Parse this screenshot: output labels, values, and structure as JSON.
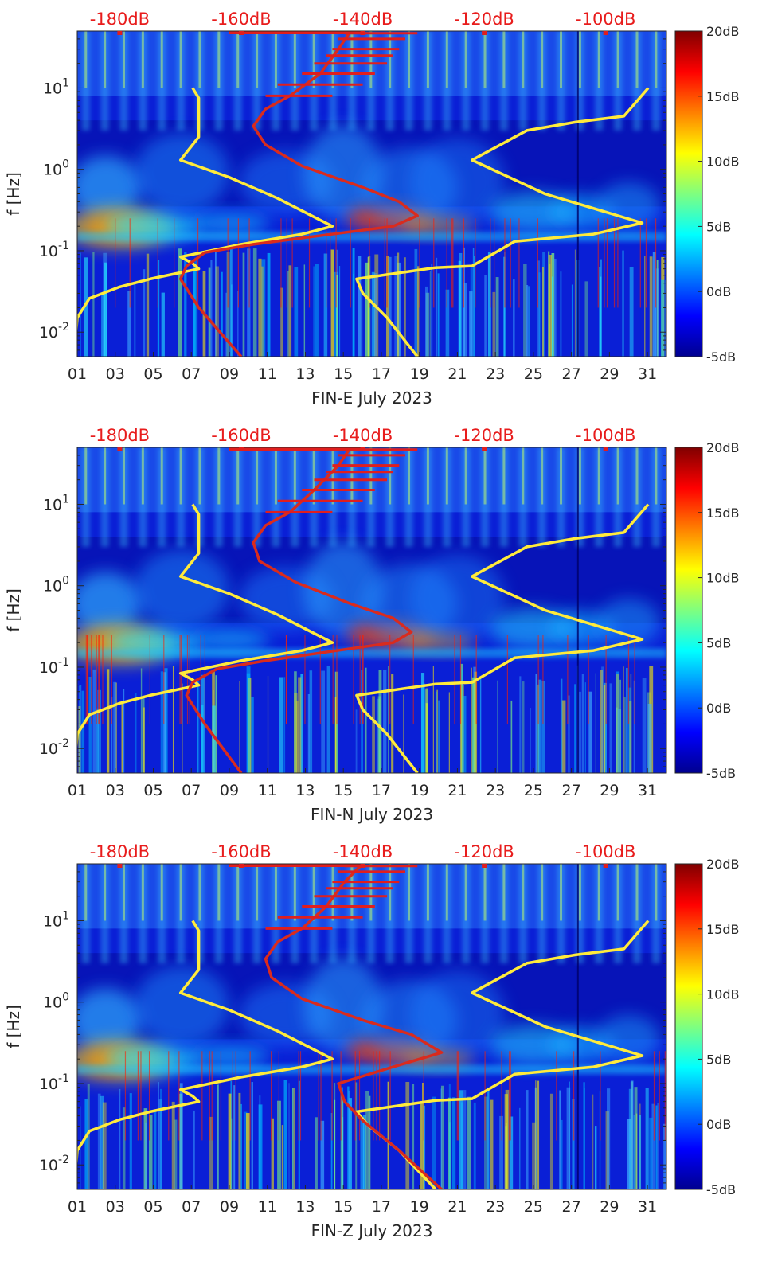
{
  "chart_data": [
    {
      "type": "heatmap",
      "xlabel": "FIN-E July 2023",
      "ylabel": "f [Hz]",
      "x_ticks": [
        "01",
        "03",
        "05",
        "07",
        "09",
        "11",
        "13",
        "15",
        "17",
        "19",
        "21",
        "23",
        "25",
        "27",
        "29",
        "31"
      ],
      "xlim_day": [
        1,
        32
      ],
      "ylim_hz": [
        0.005,
        50
      ],
      "y_scale": "log",
      "y_ticks": [
        {
          "value": 0.01,
          "label": "10^-2"
        },
        {
          "value": 0.1,
          "label": "10^-1"
        },
        {
          "value": 1,
          "label": "10^0"
        },
        {
          "value": 10,
          "label": "10^1"
        }
      ],
      "top_ticks": [
        "-180dB",
        "-160dB",
        "-140dB",
        "-120dB",
        "-100dB"
      ],
      "top_axis_db_range": [
        -187,
        -90
      ],
      "colorbar": {
        "ticks": [
          "-5dB",
          "0dB",
          "5dB",
          "10dB",
          "15dB",
          "20dB"
        ],
        "range_db": [
          -5,
          20
        ],
        "colormap": "jet"
      },
      "series": [
        {
          "color": "#ffeb3b",
          "db_vs_freq": [
            [
              -187.5,
              0.005
            ],
            [
              -187,
              0.015
            ],
            [
              -185,
              0.026
            ],
            [
              -180,
              0.036
            ],
            [
              -175,
              0.045
            ],
            [
              -171,
              0.052
            ],
            [
              -167,
              0.06
            ],
            [
              -168,
              0.07
            ],
            [
              -170,
              0.084
            ],
            [
              -160,
              0.12
            ],
            [
              -150,
              0.16
            ],
            [
              -145,
              0.2
            ],
            [
              -154,
              0.44
            ],
            [
              -162,
              0.8
            ],
            [
              -170,
              1.3
            ],
            [
              -167,
              2.5
            ],
            [
              -167,
              7.5
            ],
            [
              -168,
              10
            ]
          ]
        },
        {
          "color": "#ffeb3b",
          "db_vs_freq": [
            [
              -131,
              0.005
            ],
            [
              -136,
              0.015
            ],
            [
              -140,
              0.03
            ],
            [
              -141,
              0.045
            ],
            [
              -128,
              0.062
            ],
            [
              -122,
              0.065
            ],
            [
              -115,
              0.13
            ],
            [
              -102,
              0.16
            ],
            [
              -94,
              0.22
            ],
            [
              -110,
              0.5
            ],
            [
              -122,
              1.3
            ],
            [
              -113,
              3
            ],
            [
              -105,
              3.8
            ],
            [
              -97,
              4.5
            ],
            [
              -93,
              10
            ]
          ]
        },
        {
          "color": "#d92b1e",
          "db_vs_freq": [
            [
              -160,
              0.005
            ],
            [
              -167,
              0.02
            ],
            [
              -170,
              0.045
            ],
            [
              -169,
              0.065
            ],
            [
              -166,
              0.095
            ],
            [
              -158,
              0.12
            ],
            [
              -135,
              0.2
            ],
            [
              -131,
              0.27
            ],
            [
              -134,
              0.4
            ],
            [
              -140,
              0.6
            ],
            [
              -150,
              1.1
            ],
            [
              -156,
              2
            ],
            [
              -158,
              3.4
            ],
            [
              -156,
              5.5
            ],
            [
              -152,
              8
            ],
            [
              -147,
              15
            ],
            [
              -144,
              30
            ],
            [
              -142,
              50
            ]
          ]
        }
      ]
    },
    {
      "type": "heatmap",
      "xlabel": "FIN-N July 2023",
      "ylabel": "f [Hz]",
      "x_ticks": [
        "01",
        "03",
        "05",
        "07",
        "09",
        "11",
        "13",
        "15",
        "17",
        "19",
        "21",
        "23",
        "25",
        "27",
        "29",
        "31"
      ],
      "xlim_day": [
        1,
        32
      ],
      "ylim_hz": [
        0.005,
        50
      ],
      "y_scale": "log",
      "y_ticks": [
        {
          "value": 0.01,
          "label": "10^-2"
        },
        {
          "value": 0.1,
          "label": "10^-1"
        },
        {
          "value": 1,
          "label": "10^0"
        },
        {
          "value": 10,
          "label": "10^1"
        }
      ],
      "top_ticks": [
        "-180dB",
        "-160dB",
        "-140dB",
        "-120dB",
        "-100dB"
      ],
      "top_axis_db_range": [
        -187,
        -90
      ],
      "colorbar": {
        "ticks": [
          "-5dB",
          "0dB",
          "5dB",
          "10dB",
          "15dB",
          "20dB"
        ],
        "range_db": [
          -5,
          20
        ],
        "colormap": "jet"
      },
      "series": [
        {
          "color": "#ffeb3b",
          "db_vs_freq": [
            [
              -187.5,
              0.005
            ],
            [
              -187,
              0.015
            ],
            [
              -185,
              0.026
            ],
            [
              -180,
              0.036
            ],
            [
              -175,
              0.045
            ],
            [
              -171,
              0.052
            ],
            [
              -167,
              0.06
            ],
            [
              -168,
              0.07
            ],
            [
              -170,
              0.084
            ],
            [
              -160,
              0.12
            ],
            [
              -150,
              0.16
            ],
            [
              -145,
              0.2
            ],
            [
              -154,
              0.44
            ],
            [
              -162,
              0.8
            ],
            [
              -170,
              1.3
            ],
            [
              -167,
              2.5
            ],
            [
              -167,
              7.5
            ],
            [
              -168,
              10
            ]
          ]
        },
        {
          "color": "#ffeb3b",
          "db_vs_freq": [
            [
              -131,
              0.005
            ],
            [
              -136,
              0.015
            ],
            [
              -140,
              0.03
            ],
            [
              -141,
              0.045
            ],
            [
              -128,
              0.062
            ],
            [
              -122,
              0.065
            ],
            [
              -115,
              0.13
            ],
            [
              -102,
              0.16
            ],
            [
              -94,
              0.22
            ],
            [
              -110,
              0.5
            ],
            [
              -122,
              1.3
            ],
            [
              -113,
              3
            ],
            [
              -105,
              3.8
            ],
            [
              -97,
              4.5
            ],
            [
              -93,
              10
            ]
          ]
        },
        {
          "color": "#d92b1e",
          "db_vs_freq": [
            [
              -160,
              0.005
            ],
            [
              -166,
              0.02
            ],
            [
              -169,
              0.045
            ],
            [
              -168,
              0.065
            ],
            [
              -164,
              0.095
            ],
            [
              -156,
              0.12
            ],
            [
              -135,
              0.2
            ],
            [
              -132,
              0.27
            ],
            [
              -135,
              0.4
            ],
            [
              -142,
              0.6
            ],
            [
              -151,
              1.1
            ],
            [
              -157,
              2
            ],
            [
              -158,
              3.4
            ],
            [
              -156,
              5.5
            ],
            [
              -152,
              8
            ],
            [
              -148,
              15
            ],
            [
              -144,
              30
            ],
            [
              -142,
              50
            ]
          ]
        }
      ]
    },
    {
      "type": "heatmap",
      "xlabel": "FIN-Z July 2023",
      "ylabel": "f [Hz]",
      "x_ticks": [
        "01",
        "03",
        "05",
        "07",
        "09",
        "11",
        "13",
        "15",
        "17",
        "19",
        "21",
        "23",
        "25",
        "27",
        "29",
        "31"
      ],
      "xlim_day": [
        1,
        32
      ],
      "ylim_hz": [
        0.005,
        50
      ],
      "y_scale": "log",
      "y_ticks": [
        {
          "value": 0.01,
          "label": "10^-2"
        },
        {
          "value": 0.1,
          "label": "10^-1"
        },
        {
          "value": 1,
          "label": "10^0"
        },
        {
          "value": 10,
          "label": "10^1"
        }
      ],
      "top_ticks": [
        "-180dB",
        "-160dB",
        "-140dB",
        "-120dB",
        "-100dB"
      ],
      "top_axis_db_range": [
        -187,
        -90
      ],
      "colorbar": {
        "ticks": [
          "-5dB",
          "0dB",
          "5dB",
          "10dB",
          "15dB",
          "20dB"
        ],
        "range_db": [
          -5,
          20
        ],
        "colormap": "jet"
      },
      "series": [
        {
          "color": "#ffeb3b",
          "db_vs_freq": [
            [
              -187.5,
              0.005
            ],
            [
              -187,
              0.015
            ],
            [
              -185,
              0.026
            ],
            [
              -180,
              0.036
            ],
            [
              -175,
              0.045
            ],
            [
              -171,
              0.052
            ],
            [
              -167,
              0.06
            ],
            [
              -168,
              0.07
            ],
            [
              -170,
              0.084
            ],
            [
              -160,
              0.12
            ],
            [
              -150,
              0.16
            ],
            [
              -145,
              0.2
            ],
            [
              -154,
              0.44
            ],
            [
              -162,
              0.8
            ],
            [
              -170,
              1.3
            ],
            [
              -167,
              2.5
            ],
            [
              -167,
              7.5
            ],
            [
              -168,
              10
            ]
          ]
        },
        {
          "color": "#ffeb3b",
          "db_vs_freq": [
            [
              -128,
              0.005
            ],
            [
              -134,
              0.015
            ],
            [
              -139,
              0.03
            ],
            [
              -141,
              0.045
            ],
            [
              -128,
              0.062
            ],
            [
              -122,
              0.065
            ],
            [
              -115,
              0.13
            ],
            [
              -102,
              0.16
            ],
            [
              -94,
              0.22
            ],
            [
              -110,
              0.5
            ],
            [
              -122,
              1.3
            ],
            [
              -113,
              3
            ],
            [
              -105,
              3.8
            ],
            [
              -97,
              4.5
            ],
            [
              -93,
              10
            ]
          ]
        },
        {
          "color": "#d92b1e",
          "db_vs_freq": [
            [
              -127,
              0.005
            ],
            [
              -134,
              0.015
            ],
            [
              -140,
              0.035
            ],
            [
              -143,
              0.06
            ],
            [
              -144,
              0.1
            ],
            [
              -135,
              0.16
            ],
            [
              -127,
              0.24
            ],
            [
              -132,
              0.4
            ],
            [
              -140,
              0.6
            ],
            [
              -150,
              1.1
            ],
            [
              -155,
              2
            ],
            [
              -156,
              3.4
            ],
            [
              -154,
              5.5
            ],
            [
              -150,
              8
            ],
            [
              -146,
              15
            ],
            [
              -143,
              30
            ],
            [
              -140,
              50
            ]
          ]
        }
      ]
    }
  ]
}
